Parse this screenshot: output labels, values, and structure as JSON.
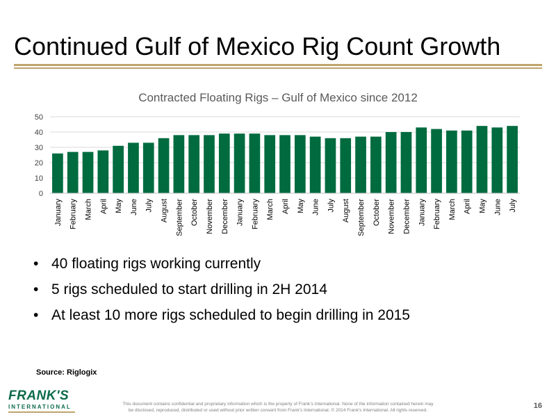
{
  "slide": {
    "title": "Continued Gulf of Mexico Rig Count Growth",
    "page_number": "16"
  },
  "chart_data": {
    "type": "bar",
    "title": "Contracted Floating Rigs – Gulf of Mexico since 2012",
    "xlabel": "",
    "ylabel": "",
    "ylim": [
      0,
      50
    ],
    "yticks": [
      0,
      10,
      20,
      30,
      40,
      50
    ],
    "grid": true,
    "color": "#006b3f",
    "categories": [
      "January",
      "February",
      "March",
      "April",
      "May",
      "June",
      "July",
      "August",
      "September",
      "October",
      "November",
      "December",
      "January",
      "February",
      "March",
      "April",
      "May",
      "June",
      "July",
      "August",
      "September",
      "October",
      "November",
      "December",
      "January",
      "February",
      "March",
      "April",
      "May",
      "June",
      "July"
    ],
    "values": [
      26,
      27,
      27,
      28,
      31,
      33,
      33,
      36,
      38,
      38,
      38,
      39,
      39,
      39,
      38,
      38,
      38,
      37,
      36,
      36,
      37,
      37,
      40,
      40,
      43,
      42,
      41,
      41,
      44,
      43,
      44
    ]
  },
  "bullets": [
    "40 floating rigs working currently",
    "5 rigs scheduled to start drilling in 2H 2014",
    "At least 10 more rigs scheduled to begin drilling in 2015"
  ],
  "bullet_glyph": "•",
  "source": "Source: Riglogix",
  "logo": {
    "brand": "FRANK'S",
    "sub": "INTERNATIONAL"
  },
  "footer": {
    "disclaimer_line1": "This document contains confidential and proprietary information which is the property of Frank’s International.  None of the information contained herein may",
    "disclaimer_line2": "be disclosed, reproduced, distributed or used without prior written consent from Frank’s International. © 2014 Frank’s International.  All rights reserved."
  }
}
